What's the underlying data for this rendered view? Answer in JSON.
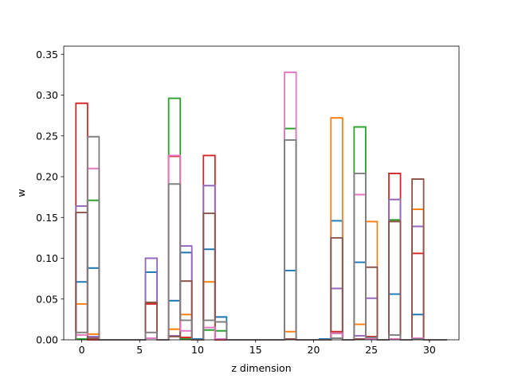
{
  "chart_data": {
    "type": "bar",
    "style": "stacked step outlines",
    "xlabel": "z dimension",
    "ylabel": "w",
    "xlim": [
      -1.55,
      32.55
    ],
    "ylim": [
      0,
      0.36
    ],
    "xticks": [
      0,
      5,
      10,
      15,
      20,
      25,
      30
    ],
    "yticks": [
      0.0,
      0.05,
      0.1,
      0.15,
      0.2,
      0.25,
      0.3,
      0.35
    ],
    "x": [
      0,
      1,
      2,
      3,
      4,
      5,
      6,
      7,
      8,
      9,
      10,
      11,
      12,
      13,
      14,
      15,
      16,
      17,
      18,
      19,
      20,
      21,
      22,
      23,
      24,
      25,
      26,
      27,
      28,
      29,
      30,
      31
    ],
    "series": [
      {
        "color": "#1f77b4",
        "values": [
          0.071,
          0.088,
          0,
          0,
          0,
          0,
          0.083,
          0,
          0.048,
          0.107,
          0.001,
          0.111,
          0.028,
          0,
          0,
          0,
          0,
          0,
          0.085,
          0,
          0,
          0.001,
          0.146,
          0.0,
          0.095,
          0.004,
          0,
          0.056,
          0,
          0.031,
          0,
          0
        ]
      },
      {
        "color": "#ff7f0e",
        "values": [
          0.044,
          0.007,
          0,
          0,
          0,
          0,
          0.046,
          0,
          0.013,
          0.031,
          0,
          0.071,
          0,
          0,
          0,
          0,
          0,
          0,
          0.01,
          0,
          0,
          0,
          0.272,
          0,
          0.019,
          0.145,
          0,
          0.146,
          0,
          0.16,
          0,
          0
        ]
      },
      {
        "color": "#2ca02c",
        "values": [
          0.001,
          0.171,
          0,
          0,
          0,
          0,
          0.045,
          0,
          0.296,
          0.001,
          0,
          0.012,
          0.011,
          0,
          0,
          0,
          0,
          0,
          0.259,
          0,
          0,
          0,
          0.008,
          0,
          0.261,
          0.004,
          0,
          0.147,
          0,
          0.001,
          0,
          0
        ]
      },
      {
        "color": "#d62728",
        "values": [
          0.29,
          0,
          0,
          0,
          0,
          0,
          0.044,
          0,
          0.225,
          0.003,
          0,
          0.226,
          0,
          0,
          0,
          0,
          0,
          0,
          0.001,
          0,
          0,
          0,
          0.01,
          0,
          0.001,
          0.004,
          0,
          0.204,
          0,
          0.106,
          0,
          0
        ]
      },
      {
        "color": "#9467bd",
        "values": [
          0.164,
          0.004,
          0,
          0,
          0,
          0,
          0.1,
          0,
          0.005,
          0.115,
          0,
          0.189,
          0.022,
          0,
          0,
          0,
          0,
          0,
          0.001,
          0,
          0,
          0,
          0.063,
          0,
          0.005,
          0.051,
          0,
          0.172,
          0,
          0.139,
          0,
          0
        ]
      },
      {
        "color": "#8c564b",
        "values": [
          0.156,
          0.002,
          0,
          0,
          0,
          0,
          0.046,
          0,
          0.004,
          0.072,
          0,
          0.155,
          0.001,
          0,
          0,
          0,
          0,
          0,
          0.001,
          0,
          0,
          0,
          0.125,
          0,
          0.001,
          0.089,
          0,
          0.145,
          0,
          0.197,
          0,
          0
        ]
      },
      {
        "color": "#e377c2",
        "values": [
          0.006,
          0.21,
          0,
          0,
          0,
          0,
          0.002,
          0,
          0.226,
          0.011,
          0,
          0.015,
          0.001,
          0,
          0,
          0,
          0,
          0,
          0.328,
          0,
          0,
          0,
          0.008,
          0,
          0.178,
          0.001,
          0,
          0.001,
          0,
          0.002,
          0,
          0
        ]
      },
      {
        "color": "#7f7f7f",
        "values": [
          0.009,
          0.249,
          0,
          0,
          0,
          0,
          0.009,
          0,
          0.191,
          0.024,
          0,
          0.024,
          0.022,
          0,
          0,
          0,
          0,
          0,
          0.245,
          0,
          0,
          0,
          0.002,
          0,
          0.204,
          0.003,
          0,
          0.006,
          0,
          0.001,
          0,
          0
        ]
      }
    ]
  }
}
